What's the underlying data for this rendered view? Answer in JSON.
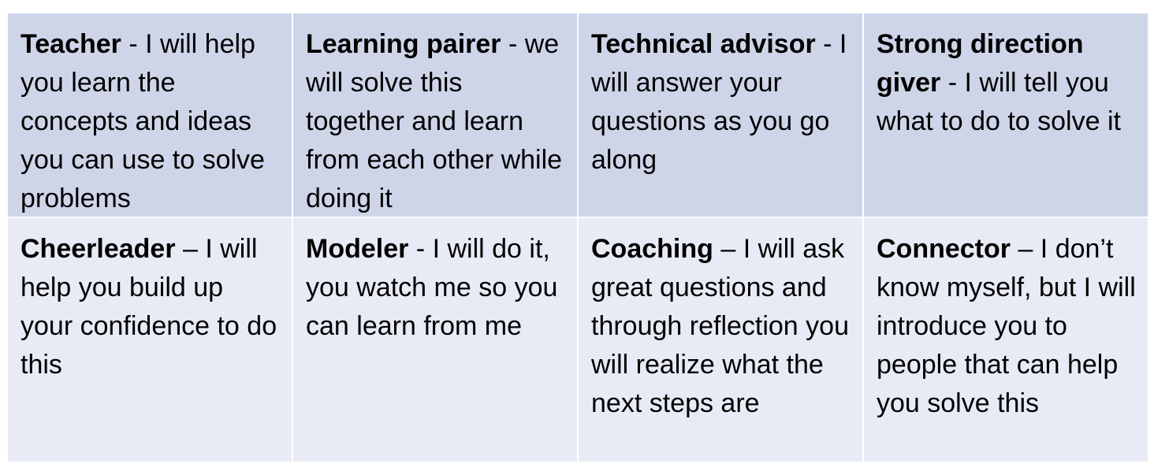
{
  "table": {
    "rows": [
      [
        {
          "term": "Teacher",
          "desc": " - I will help you learn the concepts and ideas you can use to solve problems"
        },
        {
          "term": "Learning pairer",
          "desc": " - we will solve this together and learn from each other while doing it"
        },
        {
          "term": "Technical advisor",
          "desc": " - I will answer your questions as you go along"
        },
        {
          "term": "Strong direction giver",
          "desc": " - I will tell you what to do to solve it"
        }
      ],
      [
        {
          "term": "Cheerleader",
          "desc": " – I will help you build up your confidence to do this"
        },
        {
          "term": "Modeler",
          "desc": " - I will do it, you watch me so you can learn from me"
        },
        {
          "term": "Coaching",
          "desc": " – I will ask great questions and through reflection you will realize what the next steps are"
        },
        {
          "term": "Connector",
          "desc": " – I don’t know myself, but I will introduce you to people that can help you solve this"
        }
      ]
    ],
    "colors": {
      "row_1_bg": "#cfd5e9",
      "row_2_bg": "#e8ebf5",
      "border": "#ffffff"
    }
  }
}
